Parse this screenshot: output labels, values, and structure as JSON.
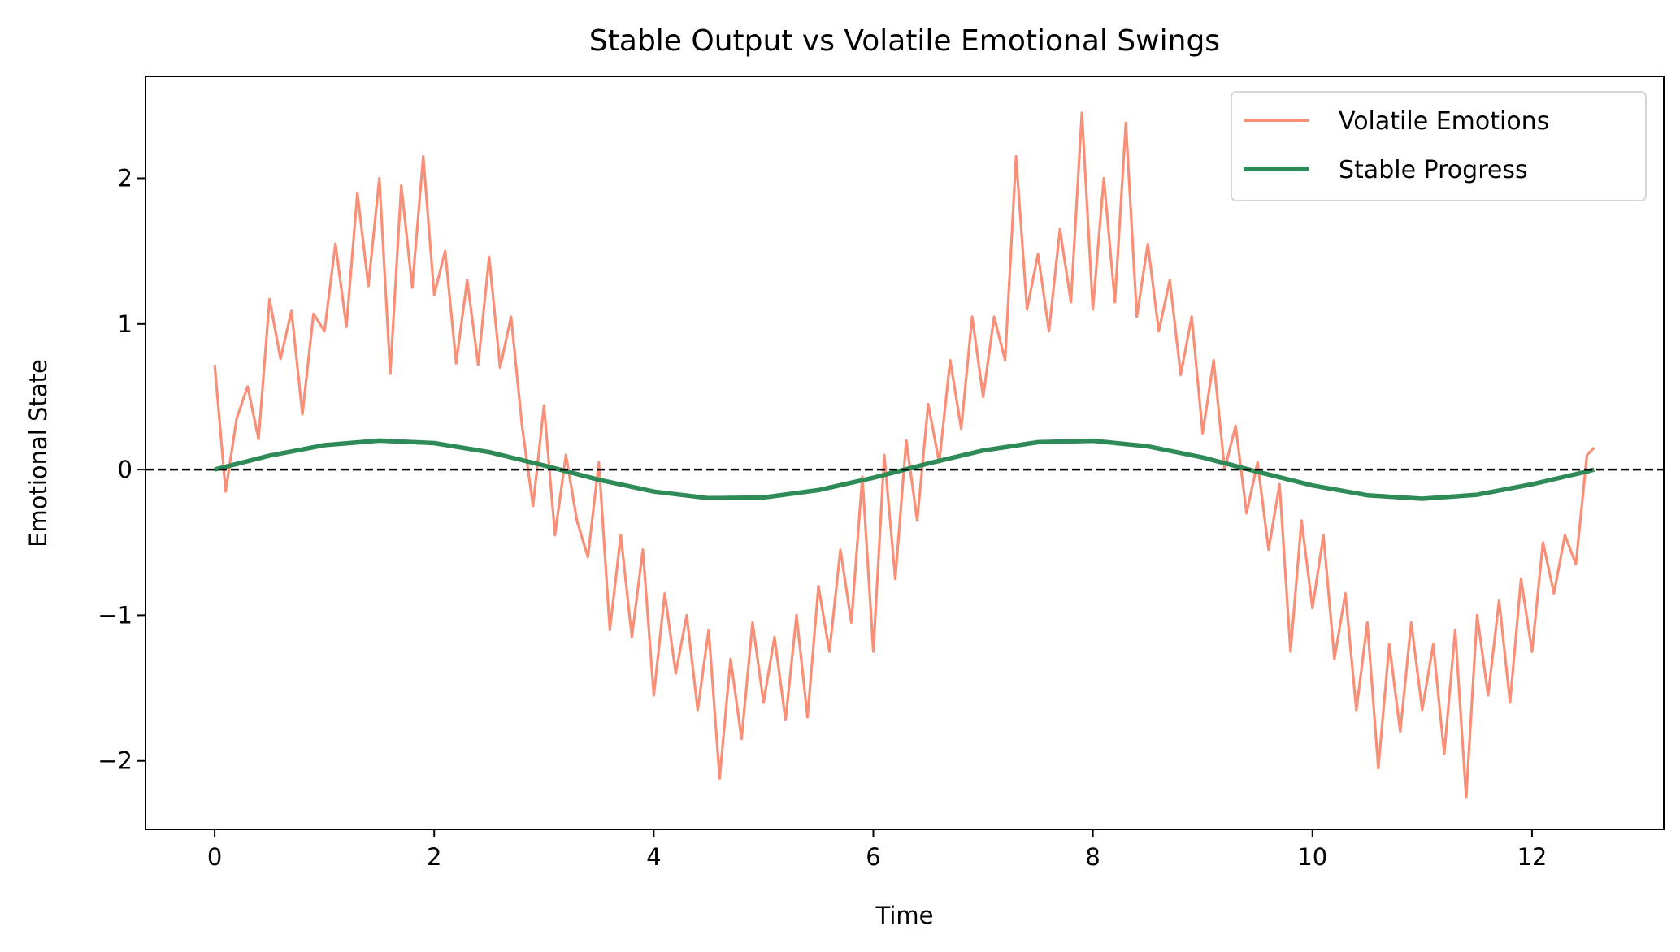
{
  "chart_data": {
    "type": "line",
    "title": "Stable Output vs Volatile Emotional Swings",
    "xlabel": "Time",
    "ylabel": "Emotional State",
    "xlim": [
      -0.63,
      13.2
    ],
    "ylim": [
      -2.47,
      2.7
    ],
    "xticks": [
      0,
      2,
      4,
      6,
      8,
      10,
      12
    ],
    "yticks": [
      -2,
      -1,
      0,
      1,
      2
    ],
    "ytick_labels": [
      "−2",
      "−1",
      "0",
      "1",
      "2"
    ],
    "grid": false,
    "legend_position": "top-right",
    "reference_line": {
      "y": 0,
      "style": "dashed",
      "color": "#000000"
    },
    "series": [
      {
        "name": "Volatile Emotions",
        "color": "#fa8f78",
        "x": [
          0,
          0.1,
          0.2,
          0.3,
          0.4,
          0.5,
          0.6,
          0.7,
          0.8,
          0.9,
          1.0,
          1.1,
          1.2,
          1.3,
          1.4,
          1.5,
          1.6,
          1.7,
          1.8,
          1.9,
          2.0,
          2.1,
          2.2,
          2.3,
          2.4,
          2.5,
          2.6,
          2.7,
          2.8,
          2.9,
          3.0,
          3.1,
          3.2,
          3.3,
          3.4,
          3.5,
          3.6,
          3.7,
          3.8,
          3.9,
          4.0,
          4.1,
          4.2,
          4.3,
          4.4,
          4.5,
          4.6,
          4.7,
          4.8,
          4.9,
          5.0,
          5.1,
          5.2,
          5.3,
          5.4,
          5.5,
          5.6,
          5.7,
          5.8,
          5.9,
          6.0,
          6.1,
          6.2,
          6.3,
          6.4,
          6.5,
          6.6,
          6.7,
          6.8,
          6.9,
          7.0,
          7.1,
          7.2,
          7.3,
          7.4,
          7.5,
          7.6,
          7.7,
          7.8,
          7.9,
          8.0,
          8.1,
          8.2,
          8.3,
          8.4,
          8.5,
          8.6,
          8.7,
          8.8,
          8.9,
          9.0,
          9.1,
          9.2,
          9.3,
          9.4,
          9.5,
          9.6,
          9.7,
          9.8,
          9.9,
          10.0,
          10.1,
          10.2,
          10.3,
          10.4,
          10.5,
          10.6,
          10.7,
          10.8,
          10.9,
          11.0,
          11.1,
          11.2,
          11.3,
          11.4,
          11.5,
          11.6,
          11.7,
          11.8,
          11.9,
          12.0,
          12.1,
          12.2,
          12.3,
          12.4,
          12.5,
          12.566
        ],
        "values": [
          0.72,
          -0.15,
          0.35,
          0.57,
          0.21,
          1.17,
          0.76,
          1.09,
          0.38,
          1.07,
          0.95,
          1.55,
          0.98,
          1.9,
          1.26,
          2.0,
          0.66,
          1.95,
          1.25,
          2.15,
          1.2,
          1.5,
          0.73,
          1.3,
          0.72,
          1.46,
          0.7,
          1.05,
          0.3,
          -0.25,
          0.44,
          -0.45,
          0.1,
          -0.35,
          -0.6,
          0.05,
          -1.1,
          -0.45,
          -1.15,
          -0.55,
          -1.55,
          -0.85,
          -1.4,
          -1.0,
          -1.65,
          -1.1,
          -2.12,
          -1.3,
          -1.85,
          -1.05,
          -1.6,
          -1.15,
          -1.72,
          -1.0,
          -1.7,
          -0.8,
          -1.25,
          -0.55,
          -1.05,
          -0.05,
          -1.25,
          0.1,
          -0.75,
          0.2,
          -0.35,
          0.45,
          0.05,
          0.75,
          0.28,
          1.05,
          0.5,
          1.05,
          0.75,
          2.15,
          1.1,
          1.48,
          0.95,
          1.65,
          1.15,
          2.45,
          1.1,
          2.0,
          1.15,
          2.38,
          1.05,
          1.55,
          0.95,
          1.3,
          0.65,
          1.05,
          0.25,
          0.75,
          0.0,
          0.3,
          -0.3,
          0.05,
          -0.55,
          -0.1,
          -1.25,
          -0.35,
          -0.95,
          -0.45,
          -1.3,
          -0.85,
          -1.65,
          -1.05,
          -2.05,
          -1.2,
          -1.8,
          -1.05,
          -1.65,
          -1.2,
          -1.95,
          -1.1,
          -2.25,
          -1.0,
          -1.55,
          -0.9,
          -1.6,
          -0.75,
          -1.25,
          -0.5,
          -0.85,
          -0.45,
          -0.65,
          0.1,
          0.15
        ]
      },
      {
        "name": "Stable Progress",
        "color": "#2e8b57",
        "x": [
          0,
          0.5,
          1.0,
          1.5,
          2.0,
          2.5,
          3.0,
          3.5,
          4.0,
          4.5,
          5.0,
          5.5,
          6.0,
          6.5,
          7.0,
          7.5,
          8.0,
          8.5,
          9.0,
          9.5,
          10.0,
          10.5,
          11.0,
          11.5,
          12.0,
          12.5,
          12.566
        ],
        "values": [
          0,
          0.096,
          0.168,
          0.199,
          0.182,
          0.12,
          0.028,
          -0.07,
          -0.151,
          -0.196,
          -0.192,
          -0.141,
          -0.056,
          0.042,
          0.131,
          0.188,
          0.198,
          0.16,
          0.083,
          -0.015,
          -0.109,
          -0.176,
          -0.2,
          -0.173,
          -0.101,
          -0.013,
          0
        ]
      }
    ]
  }
}
